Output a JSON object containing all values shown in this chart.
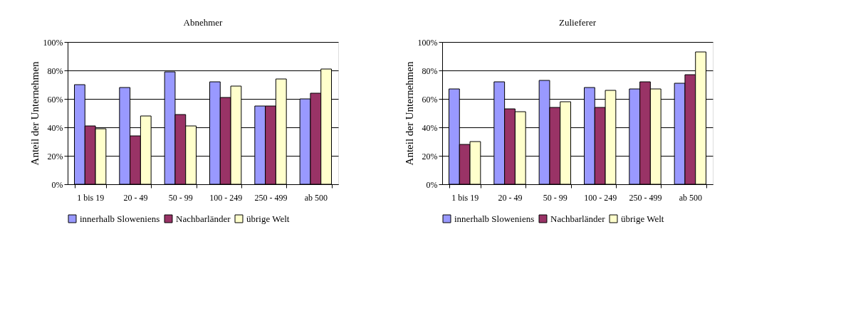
{
  "chart_data": [
    {
      "type": "bar",
      "title": "Abnehmer",
      "ylabel": "Anteil der Unternehmen",
      "categories": [
        "1 bis 19",
        "20 - 49",
        "50 - 99",
        "100 - 249",
        "250 - 499",
        "ab 500"
      ],
      "series": [
        {
          "name": "innerhalb Sloweniens",
          "color": "#9999ff",
          "values": [
            70,
            68,
            79,
            72,
            55,
            60
          ]
        },
        {
          "name": "Nachbarländer",
          "color": "#993366",
          "values": [
            41,
            34,
            49,
            61,
            55,
            64
          ]
        },
        {
          "name": "übrige Welt",
          "color": "#ffffcc",
          "values": [
            39,
            48,
            41,
            69,
            74,
            81
          ]
        }
      ],
      "ylim": [
        0,
        100
      ],
      "yticks": [
        {
          "value": 0,
          "label": "0%"
        },
        {
          "value": 20,
          "label": "20%"
        },
        {
          "value": 40,
          "label": "40%"
        },
        {
          "value": 60,
          "label": "60%"
        },
        {
          "value": 80,
          "label": "80%"
        },
        {
          "value": 100,
          "label": "100%"
        }
      ],
      "grid": "y",
      "legend": "bottom"
    },
    {
      "type": "bar",
      "title": "Zulieferer",
      "ylabel": "Anteil der Unternehmen",
      "categories": [
        "1 bis 19",
        "20 - 49",
        "50 - 99",
        "100 - 249",
        "250 - 499",
        "ab 500"
      ],
      "series": [
        {
          "name": "innerhalb Sloweniens",
          "color": "#9999ff",
          "values": [
            67,
            72,
            73,
            68,
            67,
            71
          ]
        },
        {
          "name": "Nachbarländer",
          "color": "#993366",
          "values": [
            28,
            53,
            54,
            54,
            72,
            77
          ]
        },
        {
          "name": "übrige Welt",
          "color": "#ffffcc",
          "values": [
            30,
            51,
            58,
            66,
            67,
            93
          ]
        }
      ],
      "ylim": [
        0,
        100
      ],
      "yticks": [
        {
          "value": 0,
          "label": "0%"
        },
        {
          "value": 20,
          "label": "20%"
        },
        {
          "value": 40,
          "label": "40%"
        },
        {
          "value": 60,
          "label": "60%"
        },
        {
          "value": 80,
          "label": "80%"
        },
        {
          "value": 100,
          "label": "100%"
        }
      ],
      "grid": "y",
      "legend": "bottom"
    }
  ]
}
